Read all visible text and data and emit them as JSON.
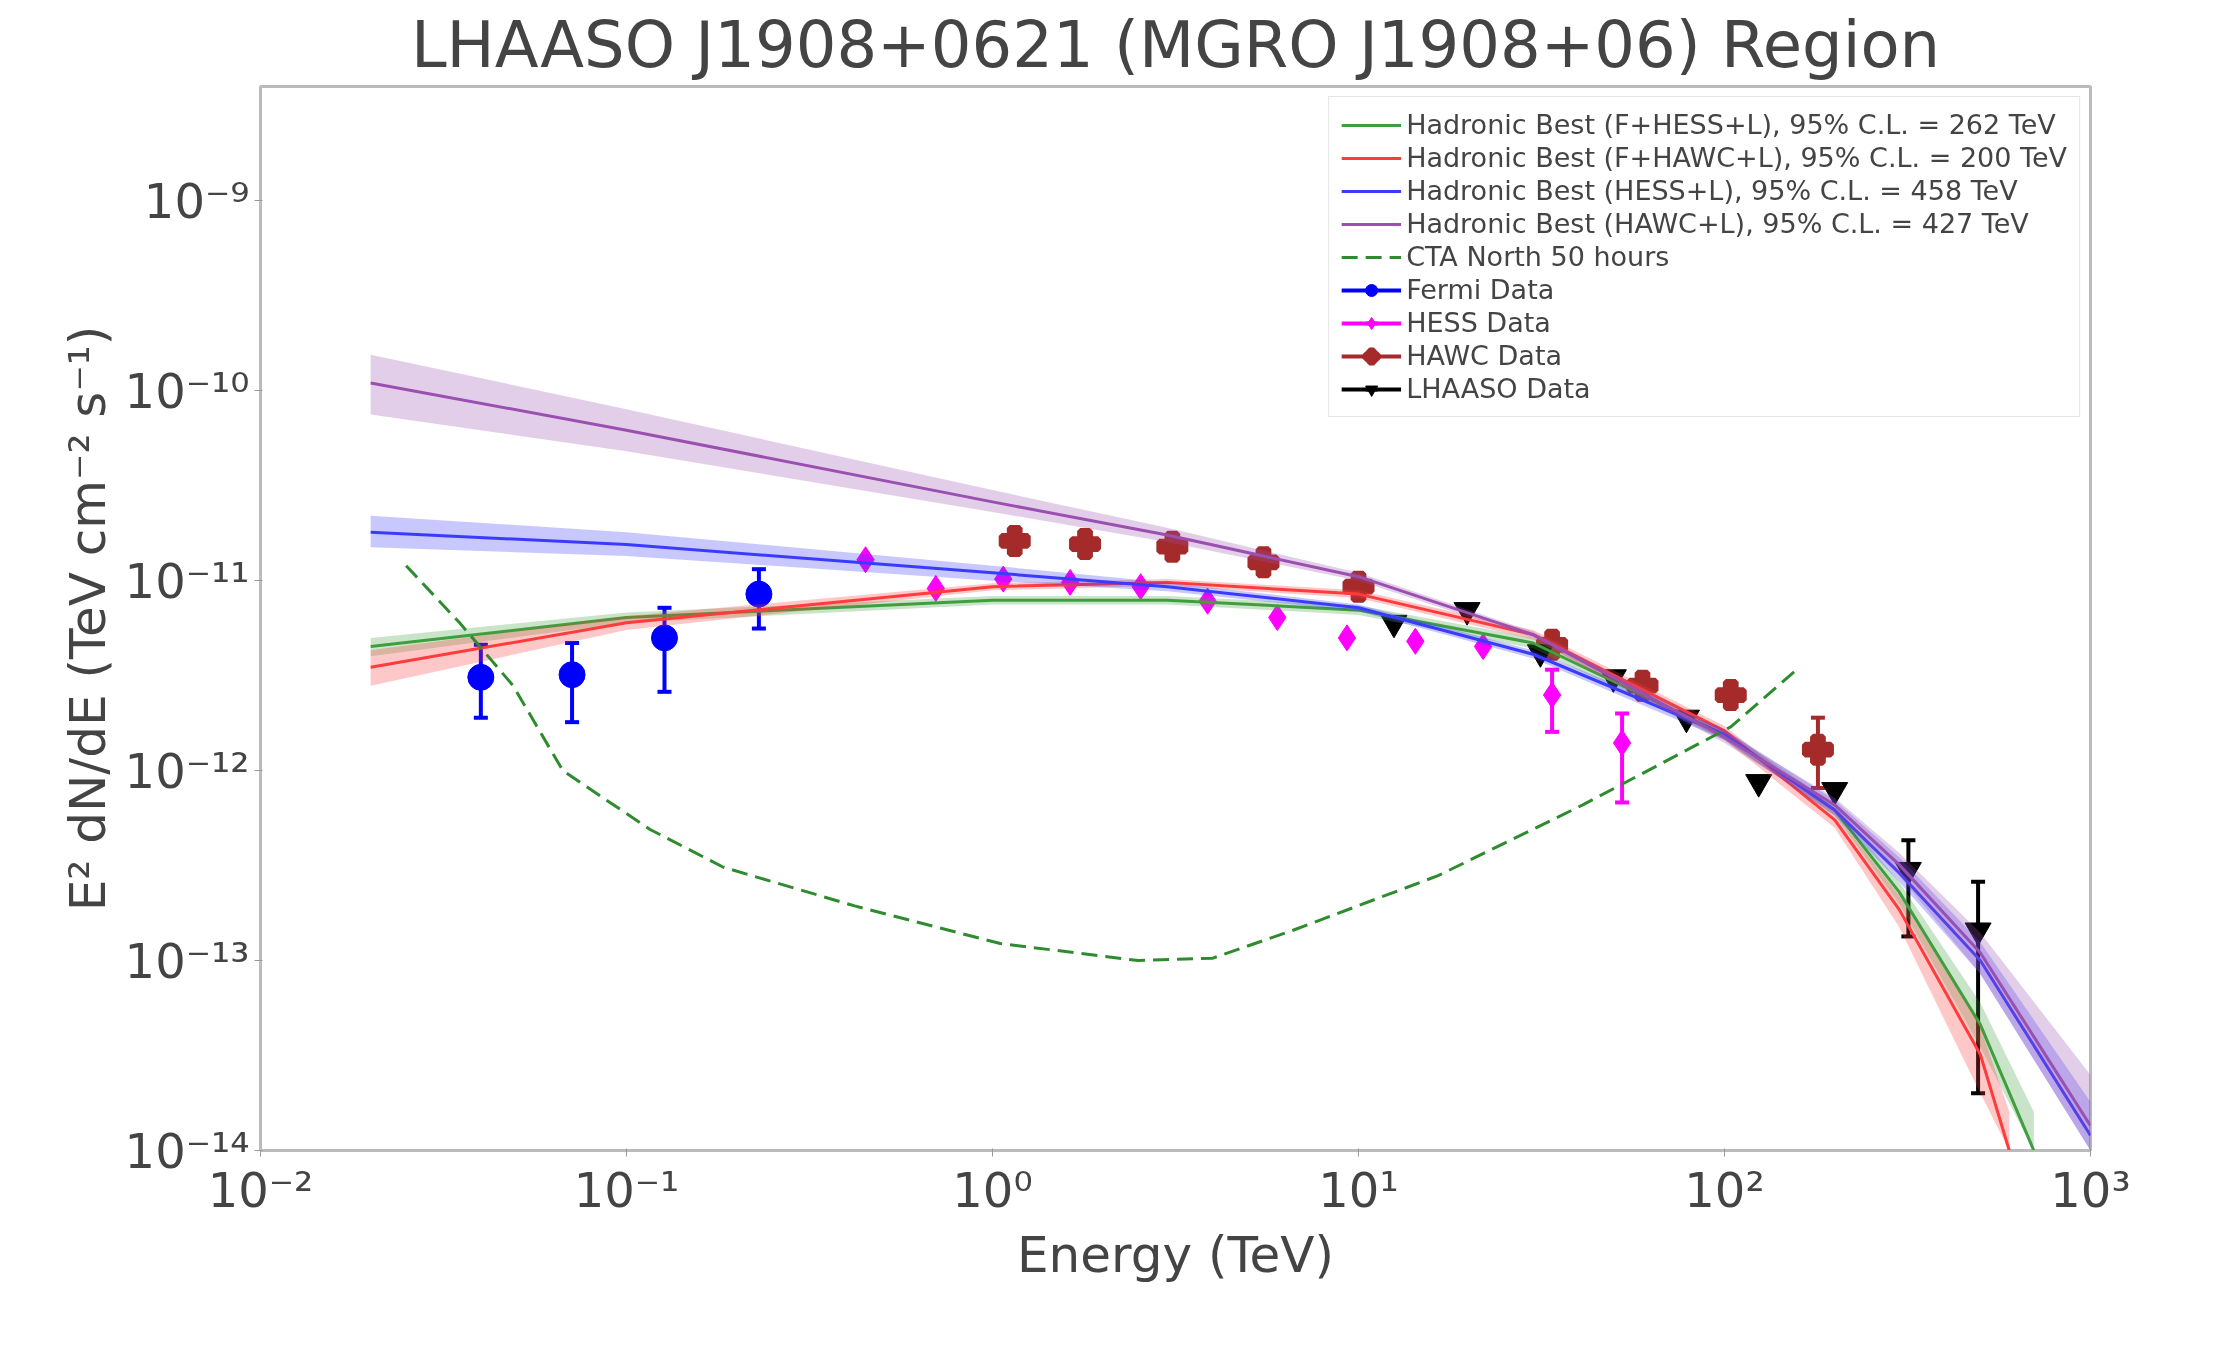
{
  "chart_data": {
    "type": "line",
    "title": "LHAASO J1908+0621 (MGRO J1908+06) Region",
    "xlabel": "Energy (TeV)",
    "ylabel": "E² dN/dE (TeV cm⁻² s⁻¹)",
    "log": "xy",
    "grid": false,
    "legend": "top right",
    "xlim": [
      0.01,
      1000
    ],
    "ylim": [
      1e-14,
      4e-09
    ],
    "xticks": [
      {
        "value": 0.01,
        "label": "10⁻²"
      },
      {
        "value": 0.1,
        "label": "10⁻¹"
      },
      {
        "value": 1,
        "label": "10⁰"
      },
      {
        "value": 10,
        "label": "10¹"
      },
      {
        "value": 100,
        "label": "10²"
      },
      {
        "value": 1000,
        "label": "10³"
      }
    ],
    "yticks": [
      {
        "value": 1e-14,
        "label": "10⁻¹⁴"
      },
      {
        "value": 1e-13,
        "label": "10⁻¹³"
      },
      {
        "value": 1e-12,
        "label": "10⁻¹²"
      },
      {
        "value": 1e-11,
        "label": "10⁻¹¹"
      },
      {
        "value": 1e-10,
        "label": "10⁻¹⁰"
      },
      {
        "value": 1e-09,
        "label": "10⁻⁹"
      }
    ],
    "series": [
      {
        "name": "Hadronic Best (F+HESS+L), 95% C.L. = 262 TeV",
        "color": "#3f9f3f",
        "line_style": "solid",
        "x": [
          0.02,
          0.1,
          1,
          3,
          10,
          30,
          100,
          200,
          300,
          500,
          700
        ],
        "values": [
          4.5e-12,
          6.4e-12,
          7.9e-12,
          7.9e-12,
          7e-12,
          4.7e-12,
          1.55e-12,
          6.2e-13,
          2.3e-13,
          4.6e-14,
          1e-14
        ],
        "upper": [
          5e-12,
          6.8e-12,
          8.3e-12,
          8.3e-12,
          7.4e-12,
          5e-12,
          1.65e-12,
          6.6e-13,
          2.6e-13,
          6e-14,
          1.6e-14
        ],
        "lower": [
          4e-12,
          6e-12,
          7.5e-12,
          7.5e-12,
          6.6e-12,
          4.4e-12,
          1.45e-12,
          5.8e-13,
          2e-13,
          3.5e-14,
          1e-14
        ]
      },
      {
        "name": "Hadronic Best (F+HAWC+L), 95% C.L. = 200 TeV",
        "color": "#ff3b3b",
        "line_style": "solid",
        "x": [
          0.02,
          0.1,
          1,
          3,
          10,
          30,
          100,
          200,
          300,
          500,
          600
        ],
        "values": [
          3.5e-12,
          6e-12,
          9.3e-12,
          9.8e-12,
          8.5e-12,
          5.2e-12,
          1.62e-12,
          5.5e-13,
          1.86e-13,
          3.2e-14,
          1e-14
        ],
        "upper": [
          4.3e-12,
          6.5e-12,
          9.7e-12,
          1.02e-11,
          8.9e-12,
          5.5e-12,
          1.72e-12,
          6e-13,
          2.2e-13,
          4.5e-14,
          1.6e-14
        ],
        "lower": [
          2.8e-12,
          5.5e-12,
          8.9e-12,
          9.4e-12,
          8.1e-12,
          4.9e-12,
          1.45e-12,
          5e-13,
          1.5e-13,
          2e-14,
          1e-14
        ]
      },
      {
        "name": "Hadronic Best (HESS+L), 95% C.L. = 458 TeV",
        "color": "#3b3bff",
        "line_style": "solid",
        "x": [
          0.02,
          0.1,
          1,
          3,
          10,
          30,
          100,
          200,
          300,
          500,
          1000
        ],
        "values": [
          1.8e-11,
          1.55e-11,
          1.1e-11,
          9.3e-12,
          7.2e-12,
          4.1e-12,
          1.55e-12,
          6.2e-13,
          2.9e-13,
          1e-13,
          1.2e-14
        ],
        "upper": [
          2.2e-11,
          1.8e-11,
          1.2e-11,
          9.8e-12,
          7.5e-12,
          4.3e-12,
          1.65e-12,
          7e-13,
          3.5e-13,
          1.25e-13,
          1.8e-14
        ],
        "lower": [
          1.5e-11,
          1.35e-11,
          1e-11,
          8.8e-12,
          6.9e-12,
          3.9e-12,
          1.45e-12,
          5.8e-13,
          2.6e-13,
          8.5e-14,
          1e-14
        ]
      },
      {
        "name": "Hadronic Best (HAWC+L), 95% C.L. = 427 TeV",
        "color": "#9b4fb0",
        "line_style": "solid",
        "x": [
          0.02,
          0.1,
          1,
          3,
          10,
          30,
          100,
          200,
          300,
          500,
          1000
        ],
        "values": [
          1.1e-10,
          6.2e-11,
          2.6e-11,
          1.74e-11,
          1.05e-11,
          5.2e-12,
          1.5e-12,
          6.6e-13,
          3.2e-13,
          1.1e-13,
          1.35e-14
        ],
        "upper": [
          1.55e-10,
          8e-11,
          3e-11,
          1.9e-11,
          1.1e-11,
          5.4e-12,
          1.6e-12,
          7.2e-13,
          3.7e-13,
          1.4e-13,
          2.5e-14
        ],
        "lower": [
          7.5e-11,
          4.8e-11,
          2.3e-11,
          1.6e-11,
          1e-11,
          5e-12,
          1.4e-12,
          6e-13,
          2.8e-13,
          8.5e-14,
          1e-14
        ]
      },
      {
        "name": "CTA North 50 hours",
        "color": "#2e8b2e",
        "line_style": "dashed",
        "x": [
          0.025,
          0.035,
          0.049,
          0.067,
          0.116,
          0.184,
          0.42,
          1.05,
          2.5,
          4.0,
          6.6,
          16.5,
          41,
          104,
          160
        ],
        "values": [
          1.2e-11,
          6e-12,
          2.8e-12,
          1e-12,
          4.9e-13,
          3.1e-13,
          1.94e-13,
          1.23e-13,
          1e-13,
          1.03e-13,
          1.44e-13,
          2.8e-13,
          6.6e-13,
          1.7e-12,
          3.5e-12
        ]
      },
      {
        "name": "Fermi Data",
        "type": "scatter",
        "marker": "circle",
        "color": "#0000ff",
        "x": [
          0.04,
          0.071,
          0.127,
          0.23
        ],
        "values": [
          3.1e-12,
          3.2e-12,
          5e-12,
          8.5e-12
        ],
        "errors": [
          [
            1.9e-12,
            4.6e-12
          ],
          [
            1.8e-12,
            4.7e-12
          ],
          [
            2.6e-12,
            7.2e-12
          ],
          [
            5.6e-12,
            1.15e-11
          ]
        ]
      },
      {
        "name": "HESS Data",
        "type": "scatter",
        "marker": "diamond",
        "color": "#ff00ff",
        "x": [
          0.45,
          0.7,
          1.07,
          1.63,
          2.54,
          3.87,
          6.0,
          9.3,
          14.3,
          21.9,
          33.8,
          52.5
        ],
        "values": [
          1.29e-11,
          9.1e-12,
          1.02e-11,
          9.8e-12,
          9.3e-12,
          7.8e-12,
          6.4e-12,
          5e-12,
          4.8e-12,
          4.5e-12,
          2.5e-12,
          1.4e-12
        ],
        "errors": [
          null,
          null,
          null,
          null,
          null,
          null,
          null,
          null,
          null,
          null,
          [
            1.6e-12,
            3.4e-12
          ],
          [
            6.8e-13,
            2e-12
          ]
        ]
      },
      {
        "name": "HAWC Data",
        "type": "scatter",
        "marker": "cross",
        "color": "#a52a2a",
        "x": [
          1.15,
          1.79,
          3.1,
          5.5,
          10.0,
          33.8,
          59.7,
          104,
          180
        ],
        "values": [
          1.62e-11,
          1.56e-11,
          1.51e-11,
          1.25e-11,
          9.3e-12,
          4.6e-12,
          2.8e-12,
          2.5e-12,
          1.29e-12
        ],
        "errors": [
          null,
          null,
          null,
          null,
          null,
          null,
          null,
          null,
          [
            8.1e-13,
            1.9e-12
          ]
        ]
      },
      {
        "name": "LHAASO Data",
        "type": "scatter",
        "marker": "triangle",
        "color": "#000000",
        "x": [
          12.5,
          19.8,
          31.4,
          49.7,
          78.7,
          124,
          200,
          318,
          493
        ],
        "values": [
          6e-12,
          7e-12,
          4.2e-12,
          3.1e-12,
          1.9e-12,
          8.7e-13,
          7.9e-13,
          3e-13,
          1.44e-13
        ],
        "errors": [
          null,
          null,
          null,
          null,
          null,
          null,
          null,
          [
            1.34e-13,
            4.3e-13
          ],
          [
            2e-14,
            2.6e-13
          ]
        ]
      }
    ]
  }
}
